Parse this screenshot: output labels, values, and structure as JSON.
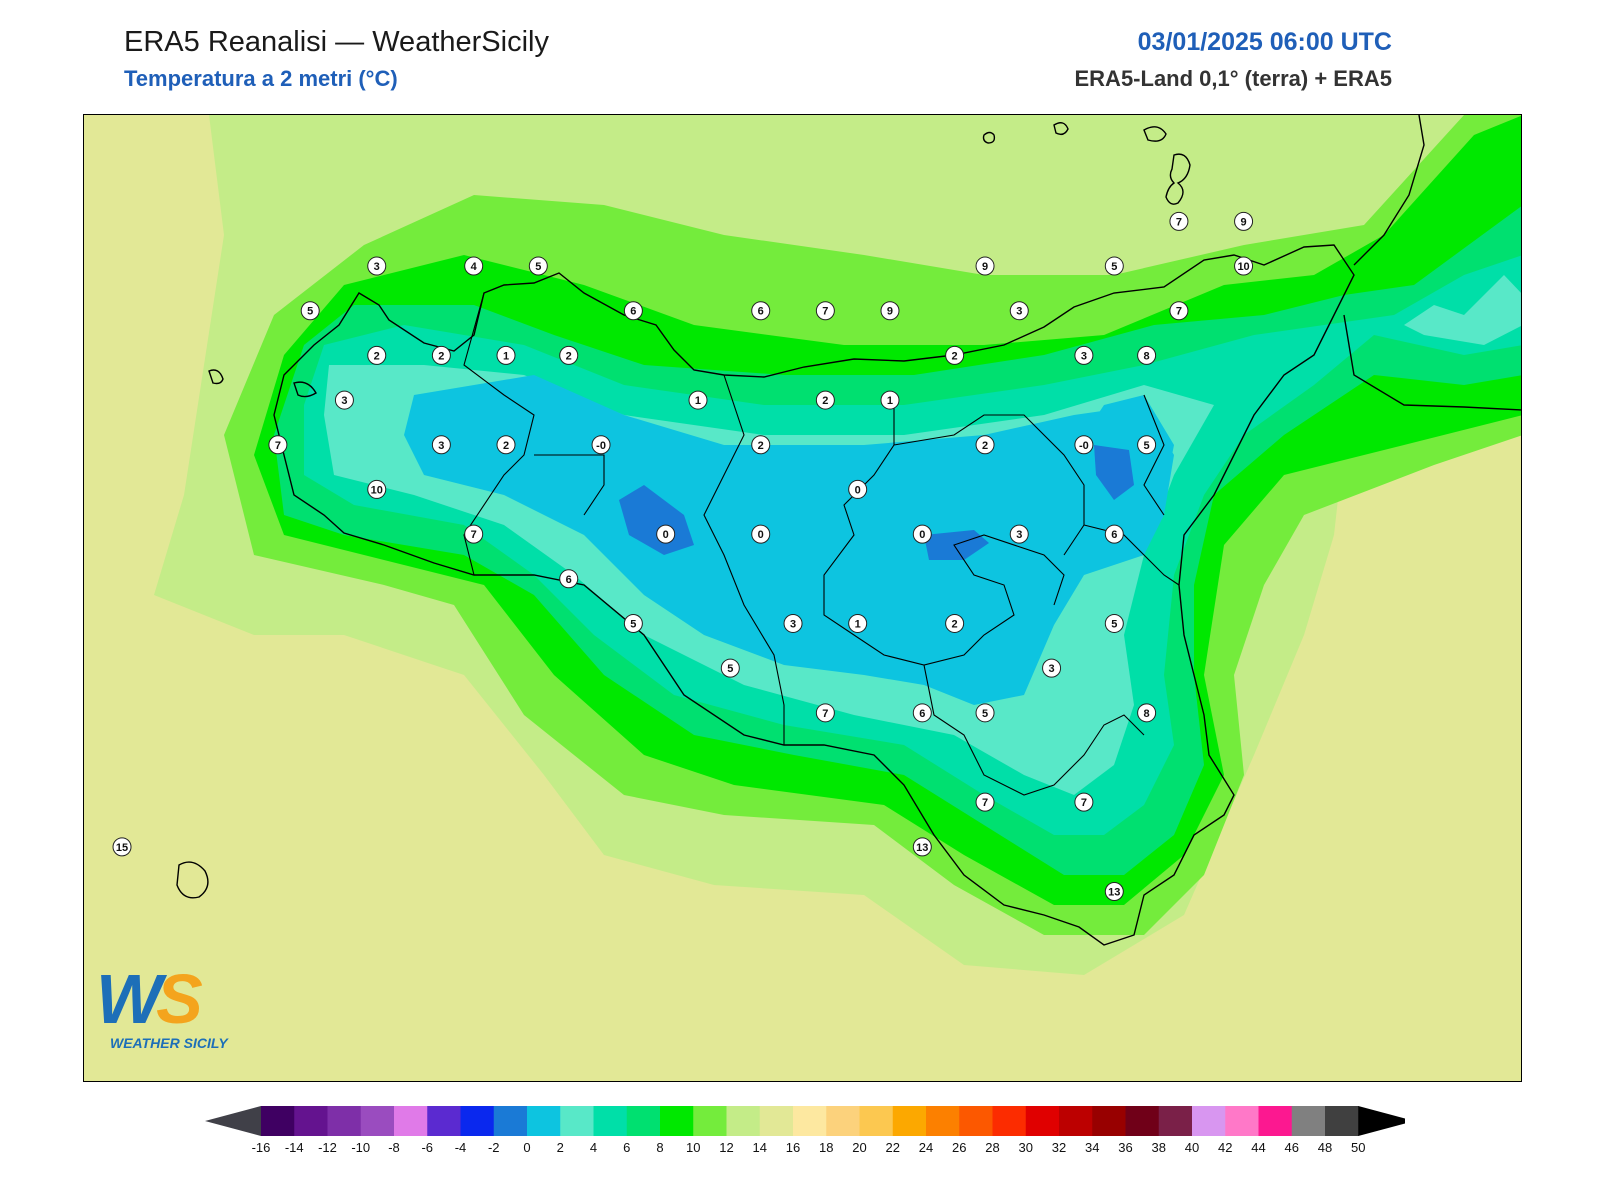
{
  "header": {
    "title": "ERA5 Reanalisi — WeatherSicily",
    "subtitle": "Temperatura a 2 metri (°C)",
    "datetime": "03/01/2025 06:00 UTC",
    "source": "ERA5-Land 0,1° (terra) + ERA5"
  },
  "logo": {
    "letters_w": "W",
    "letters_s": "S",
    "caption": "WEATHER SICILY"
  },
  "colors": {
    "sea_background": "#e2e896",
    "title_blue": "#1f5fb8"
  },
  "stations": [
    {
      "label": "3",
      "lon": 12.52,
      "lat": 38.09
    },
    {
      "label": "4",
      "lon": 13.03,
      "lat": 38.09
    },
    {
      "label": "5",
      "lon": 13.37,
      "lat": 38.09
    },
    {
      "label": "5",
      "lon": 12.17,
      "lat": 37.88
    },
    {
      "label": "6",
      "lon": 13.87,
      "lat": 37.88
    },
    {
      "label": "6",
      "lon": 14.54,
      "lat": 37.88
    },
    {
      "label": "7",
      "lon": 14.88,
      "lat": 37.88
    },
    {
      "label": "9",
      "lon": 15.22,
      "lat": 37.88
    },
    {
      "label": "9",
      "lon": 15.72,
      "lat": 38.09
    },
    {
      "label": "5",
      "lon": 16.4,
      "lat": 38.09
    },
    {
      "label": "7",
      "lon": 16.74,
      "lat": 38.3
    },
    {
      "label": "9",
      "lon": 17.08,
      "lat": 38.3
    },
    {
      "label": "10",
      "lon": 17.08,
      "lat": 38.09
    },
    {
      "label": "3",
      "lon": 15.9,
      "lat": 37.88
    },
    {
      "label": "7",
      "lon": 16.74,
      "lat": 37.88
    },
    {
      "label": "2",
      "lon": 12.52,
      "lat": 37.67
    },
    {
      "label": "2",
      "lon": 12.86,
      "lat": 37.67
    },
    {
      "label": "1",
      "lon": 13.2,
      "lat": 37.67
    },
    {
      "label": "2",
      "lon": 13.53,
      "lat": 37.67
    },
    {
      "label": "2",
      "lon": 15.56,
      "lat": 37.67
    },
    {
      "label": "3",
      "lon": 16.24,
      "lat": 37.67
    },
    {
      "label": "8",
      "lon": 16.57,
      "lat": 37.67
    },
    {
      "label": "3",
      "lon": 12.35,
      "lat": 37.46
    },
    {
      "label": "1",
      "lon": 14.21,
      "lat": 37.46
    },
    {
      "label": "2",
      "lon": 14.88,
      "lat": 37.46
    },
    {
      "label": "1",
      "lon": 15.22,
      "lat": 37.46
    },
    {
      "label": "7",
      "lon": 12.0,
      "lat": 37.25
    },
    {
      "label": "3",
      "lon": 12.86,
      "lat": 37.25
    },
    {
      "label": "2",
      "lon": 13.2,
      "lat": 37.25
    },
    {
      "label": "-0",
      "lon": 13.7,
      "lat": 37.25
    },
    {
      "label": "2",
      "lon": 14.54,
      "lat": 37.25
    },
    {
      "label": "2",
      "lon": 15.72,
      "lat": 37.25
    },
    {
      "label": "-0",
      "lon": 16.24,
      "lat": 37.25
    },
    {
      "label": "5",
      "lon": 16.57,
      "lat": 37.25
    },
    {
      "label": "10",
      "lon": 12.52,
      "lat": 37.04
    },
    {
      "label": "0",
      "lon": 15.05,
      "lat": 37.04
    },
    {
      "label": "7",
      "lon": 13.03,
      "lat": 36.83
    },
    {
      "label": "0",
      "lon": 14.04,
      "lat": 36.83
    },
    {
      "label": "0",
      "lon": 14.54,
      "lat": 36.83
    },
    {
      "label": "0",
      "lon": 15.39,
      "lat": 36.83
    },
    {
      "label": "3",
      "lon": 15.9,
      "lat": 36.83
    },
    {
      "label": "6",
      "lon": 16.4,
      "lat": 36.83
    },
    {
      "label": "6",
      "lon": 13.53,
      "lat": 36.62
    },
    {
      "label": "5",
      "lon": 13.87,
      "lat": 36.41
    },
    {
      "label": "3",
      "lon": 14.71,
      "lat": 36.41
    },
    {
      "label": "1",
      "lon": 15.05,
      "lat": 36.41
    },
    {
      "label": "2",
      "lon": 15.56,
      "lat": 36.41
    },
    {
      "label": "5",
      "lon": 16.4,
      "lat": 36.41
    },
    {
      "label": "5",
      "lon": 14.38,
      "lat": 36.2
    },
    {
      "label": "3",
      "lon": 16.07,
      "lat": 36.2
    },
    {
      "label": "7",
      "lon": 14.88,
      "lat": 35.99
    },
    {
      "label": "6",
      "lon": 15.39,
      "lat": 35.99
    },
    {
      "label": "5",
      "lon": 15.72,
      "lat": 35.99
    },
    {
      "label": "8",
      "lon": 16.57,
      "lat": 35.99
    },
    {
      "label": "7",
      "lon": 15.72,
      "lat": 35.57
    },
    {
      "label": "7",
      "lon": 16.24,
      "lat": 35.57
    },
    {
      "label": "13",
      "lon": 15.39,
      "lat": 35.36
    },
    {
      "label": "13",
      "lon": 16.4,
      "lat": 35.15
    },
    {
      "label": "15",
      "lon": 11.18,
      "lat": 35.36
    }
  ],
  "colorbar": {
    "ticks": [
      "-16",
      "-14",
      "-12",
      "-10",
      "-8",
      "-6",
      "-4",
      "-2",
      "0",
      "2",
      "4",
      "6",
      "8",
      "10",
      "12",
      "14",
      "16",
      "18",
      "20",
      "22",
      "24",
      "26",
      "28",
      "30",
      "32",
      "34",
      "36",
      "38",
      "40",
      "42",
      "44",
      "46",
      "48",
      "50"
    ],
    "colors": [
      "#3f0062",
      "#64138f",
      "#7e2fa8",
      "#9a4cbf",
      "#e07ae8",
      "#5b2ad0",
      "#0a28ee",
      "#1a7ad6",
      "#0dc4e0",
      "#58e8c8",
      "#00dfa8",
      "#00e070",
      "#00e800",
      "#74ec3c",
      "#c4ec88",
      "#e2e896",
      "#fde8a0",
      "#fcd27c",
      "#fcc850",
      "#fca800",
      "#fc8000",
      "#fc5800",
      "#fc2c00",
      "#e00000",
      "#bc0000",
      "#980000",
      "#700018",
      "#7a2048",
      "#d896f0",
      "#ff78c8",
      "#fc1890",
      "#808080",
      "#404040"
    ],
    "under_color": "#404048",
    "over_color": "#000000"
  }
}
